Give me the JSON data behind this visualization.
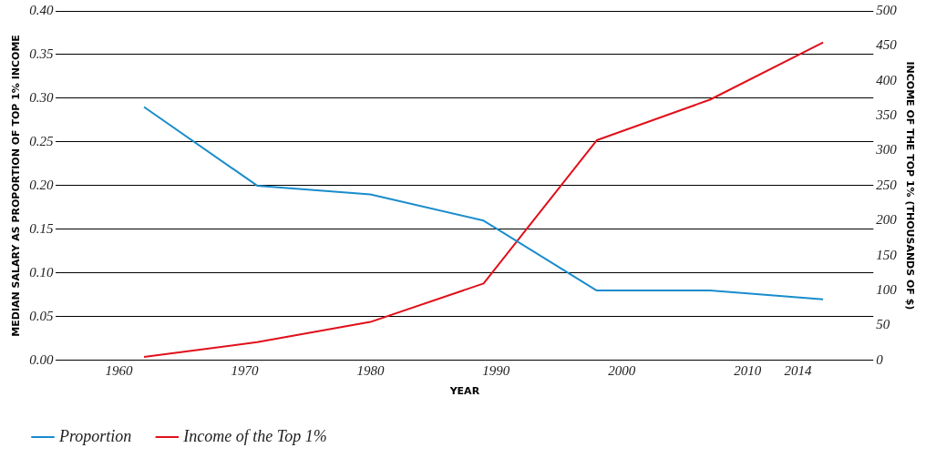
{
  "chart_data": {
    "type": "line",
    "xlabel": "YEAR",
    "ylabel": "MEDIAN SALARY AS PROPORTION OF TOP 1% INCOME",
    "y2label": "INCOME OF THE TOP 1% (THOUSANDS OF $)",
    "x": [
      1962,
      1971,
      1980,
      1989,
      1998,
      2007,
      2016
    ],
    "series": [
      {
        "name": "Proportion",
        "color": "#1a8ccc",
        "values": [
          0.29,
          0.2,
          0.19,
          0.16,
          0.08,
          0.08,
          0.07
        ]
      },
      {
        "name": "Income of the Top 1%",
        "color": "#e0101a",
        "axis": "y2",
        "values": [
          5,
          26,
          55,
          110,
          315,
          373,
          455
        ]
      }
    ],
    "xlim": [
      1955,
      2020
    ],
    "xticks": [
      1960,
      1970,
      1980,
      1990,
      2000,
      2010,
      2014
    ],
    "ylim": [
      0,
      0.4
    ],
    "yticks": [
      {
        "value": 0,
        "label": "0.00"
      },
      {
        "value": 0.05,
        "label": "0.05"
      },
      {
        "value": 0.1,
        "label": "0.10"
      },
      {
        "value": 0.15,
        "label": "0.15"
      },
      {
        "value": 0.2,
        "label": "0.20"
      },
      {
        "value": 0.25,
        "label": "0.25"
      },
      {
        "value": 0.3,
        "label": "0.30"
      },
      {
        "value": 0.35,
        "label": "0.35"
      },
      {
        "value": 0.4,
        "label": "0.40"
      }
    ],
    "y2lim": [
      0,
      500
    ],
    "y2ticks": [
      0,
      50,
      100,
      150,
      200,
      250,
      300,
      350,
      400,
      450,
      500
    ],
    "grid": "y",
    "legend": "bottom left",
    "marker": "none",
    "line_style": "solid"
  }
}
